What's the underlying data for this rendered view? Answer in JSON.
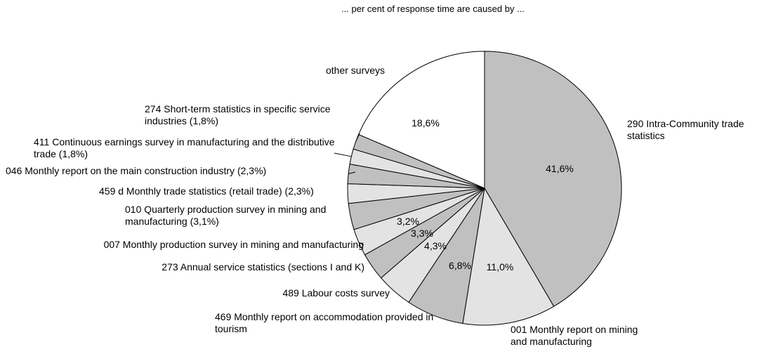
{
  "chart_data": {
    "type": "pie",
    "title": "... per cent of response time are caused by ...",
    "categories": [
      "290 Intra-Community trade statistics",
      "001 Monthly report on mining and manufacturing",
      "469 Monthly report on accommodation provided in tourism",
      "489 Labour costs survey",
      "273 Annual service statistics (sections I and K)",
      "007 Monthly production survey in mining and manufacturing",
      "010 Quarterly production survey in mining and manufacturing (3,1%)",
      "459 d Monthly trade statistics (retail trade) (2,3%)",
      "046 Monthly report on the main construction industry (2,3%)",
      "411 Continuous earnings survey in manufacturing and the distributive trade (1,8%)",
      "274 Short-term statistics in specific service industries (1,8%)",
      "other surveys"
    ],
    "values": [
      41.6,
      11.0,
      6.8,
      4.3,
      3.3,
      3.2,
      3.1,
      2.3,
      2.3,
      1.8,
      1.8,
      18.6
    ],
    "value_labels": [
      "41,6%",
      "11,0%",
      "6,8%",
      "4,3%",
      "3,3%",
      "3,2%",
      null,
      null,
      null,
      null,
      null,
      "18,6%"
    ],
    "colors": [
      "#c0c0c0",
      "#e3e3e3",
      "#c0c0c0",
      "#e3e3e3",
      "#c0c0c0",
      "#e3e3e3",
      "#c0c0c0",
      "#e3e3e3",
      "#c0c0c0",
      "#e3e3e3",
      "#c0c0c0",
      "#ffffff"
    ]
  }
}
